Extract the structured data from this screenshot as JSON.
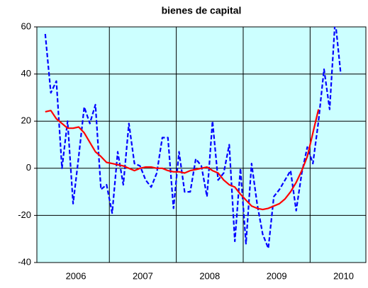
{
  "chart_data": {
    "type": "line",
    "title": "bienes de capital",
    "x": [
      "2006-01",
      "2006-02",
      "2006-03",
      "2006-04",
      "2006-05",
      "2006-06",
      "2006-07",
      "2006-08",
      "2006-09",
      "2006-10",
      "2006-11",
      "2006-12",
      "2007-01",
      "2007-02",
      "2007-03",
      "2007-04",
      "2007-05",
      "2007-06",
      "2007-07",
      "2007-08",
      "2007-09",
      "2007-10",
      "2007-11",
      "2007-12",
      "2008-01",
      "2008-02",
      "2008-03",
      "2008-04",
      "2008-05",
      "2008-06",
      "2008-07",
      "2008-08",
      "2008-09",
      "2008-10",
      "2008-11",
      "2008-12",
      "2009-01",
      "2009-02",
      "2009-03",
      "2009-04",
      "2009-05",
      "2009-06",
      "2009-07",
      "2009-08",
      "2009-09",
      "2009-10",
      "2009-11",
      "2009-12",
      "2010-01",
      "2010-02",
      "2010-03",
      "2010-04",
      "2010-05",
      "2010-06"
    ],
    "series": [
      {
        "color": "#0000ff",
        "dashed": true,
        "values": [
          57,
          32,
          37,
          0,
          20,
          -15,
          5,
          26,
          19,
          27,
          -9,
          -7,
          -19,
          7,
          -7,
          19,
          2,
          1,
          -5,
          -8,
          -2,
          13,
          13,
          -17,
          7,
          -10,
          -10,
          4,
          1,
          -12,
          20,
          -5,
          -2,
          10,
          -31,
          0,
          -32,
          2,
          -15,
          -28,
          -34,
          -12,
          -9,
          -5,
          -1,
          -18,
          -2,
          9,
          2,
          20,
          42,
          25,
          63,
          40
        ]
      },
      {
        "color": "#ff0000",
        "dashed": false,
        "values": [
          24,
          24.5,
          21,
          19,
          17,
          17,
          17.5,
          15,
          11,
          7,
          5,
          2.5,
          2,
          1.5,
          1,
          0,
          -1,
          0,
          0.5,
          0.5,
          0,
          0,
          -1,
          -1.5,
          -1.5,
          -2,
          -1,
          -0.5,
          0,
          0.5,
          -1,
          -2,
          -5,
          -7,
          -8,
          -11,
          -13.5,
          -16,
          -17,
          -17.5,
          -17,
          -16,
          -15,
          -13,
          -10,
          -6,
          -1,
          5,
          15,
          25,
          null,
          null,
          null,
          null
        ]
      }
    ],
    "xlim": [
      "2005-12",
      "2010-11"
    ],
    "xticks": [
      {
        "value": "2006-07",
        "label": "2006"
      },
      {
        "value": "2007-07",
        "label": "2007"
      },
      {
        "value": "2008-07",
        "label": "2008"
      },
      {
        "value": "2009-07",
        "label": "2009"
      },
      {
        "value": "2010-07",
        "label": "2010"
      }
    ],
    "x_gridlines": [
      "2007-01",
      "2008-01",
      "2009-01",
      "2010-01"
    ],
    "ylim": [
      -40,
      60
    ],
    "yticks": [
      -40,
      -20,
      0,
      20,
      40,
      60
    ],
    "grid": true,
    "plot_background": "#ccffff"
  }
}
